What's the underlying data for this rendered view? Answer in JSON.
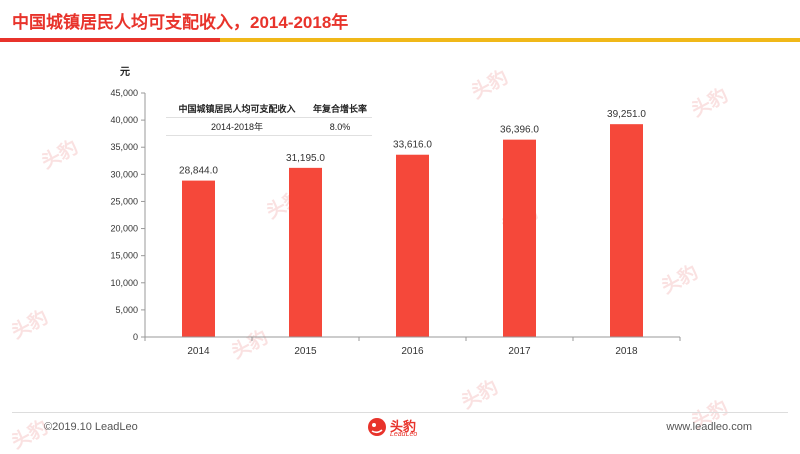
{
  "header": {
    "title": "中国城镇居民人均可支配收入，2014-2018年"
  },
  "footer": {
    "copyright": "©2019.10 LeadLeo",
    "website": "www.leadleo.com",
    "logo_text": "头豹",
    "logo_sub": "LeadLeo"
  },
  "watermark": {
    "text": "头豹"
  },
  "cagr_table": {
    "headers": [
      "中国城镇居民人均可支配收入",
      "年复合增长率"
    ],
    "rows": [
      [
        "2014-2018年",
        "8.0%"
      ]
    ]
  },
  "colors": {
    "accent": "#e8332b",
    "bar": "#f5483a",
    "rule": "#f0b819"
  },
  "chart_data": {
    "type": "bar",
    "categories": [
      "2014",
      "2015",
      "2016",
      "2017",
      "2018"
    ],
    "values": [
      28844.0,
      31195.0,
      33616.0,
      36396.0,
      39251.0
    ],
    "value_labels": [
      "28,844.0",
      "31,195.0",
      "33,616.0",
      "36,396.0",
      "39,251.0"
    ],
    "ylabel": "元",
    "ylim": [
      0,
      45000
    ],
    "yticks": [
      0,
      5000,
      10000,
      15000,
      20000,
      25000,
      30000,
      35000,
      40000,
      45000
    ],
    "ytick_labels": [
      "0",
      "5,000",
      "10,000",
      "15,000",
      "20,000",
      "25,000",
      "30,000",
      "35,000",
      "40,000",
      "45,000"
    ],
    "grid": false,
    "legend": "none"
  }
}
